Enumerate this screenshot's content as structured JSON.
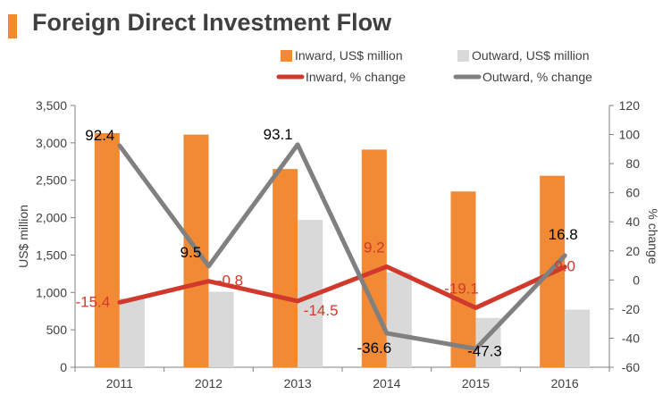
{
  "colors": {
    "inward_bar": "#F28A35",
    "outward_bar": "#D9D9D9",
    "inward_line": "#D0392B",
    "outward_line": "#808080",
    "title_accent": "#F28A35",
    "text": "#404040",
    "axis": "#808080"
  },
  "chart_data": {
    "type": "bar+line",
    "title": "Foreign Direct Investment Flow",
    "categories": [
      "2011",
      "2012",
      "2013",
      "2014",
      "2015",
      "2016"
    ],
    "series": [
      {
        "name": "Inward, US$ million",
        "kind": "bar",
        "axis": "left",
        "values": [
          3130,
          3110,
          2650,
          2910,
          2350,
          2560
        ]
      },
      {
        "name": "Outward, US$ million",
        "kind": "bar",
        "axis": "left",
        "values": [
          920,
          1010,
          1970,
          1270,
          660,
          770
        ]
      },
      {
        "name": "Inward, % change",
        "kind": "line",
        "axis": "right",
        "values": [
          -15.4,
          -0.8,
          -14.5,
          9.2,
          -19.1,
          9.0
        ],
        "labels": [
          "-15.4",
          "-0.8",
          "-14.5",
          "9.2",
          "-19.1",
          "9.0"
        ]
      },
      {
        "name": "Outward, % change",
        "kind": "line",
        "axis": "right",
        "values": [
          92.4,
          9.5,
          93.1,
          -36.6,
          -47.3,
          16.8
        ],
        "labels": [
          "92.4",
          "9.5",
          "93.1",
          "-36.6",
          "-47.3",
          "16.8"
        ]
      }
    ],
    "ylabel": "US$ million",
    "ylim": [
      0,
      3500
    ],
    "yticks": [
      0,
      500,
      1000,
      1500,
      2000,
      2500,
      3000,
      3500
    ],
    "yticklabels": [
      "0",
      "500",
      "1,000",
      "1,500",
      "2,000",
      "2,500",
      "3,000",
      "3,500"
    ],
    "y2label": "% change",
    "y2lim": [
      -60,
      120
    ],
    "y2ticks": [
      -60,
      -40,
      -20,
      0,
      20,
      40,
      60,
      80,
      100,
      120
    ],
    "y2ticklabels": [
      "-60",
      "-40",
      "-20",
      "0",
      "20",
      "40",
      "60",
      "80",
      "100",
      "120"
    ],
    "legend_position": "top-right",
    "grid": false
  }
}
